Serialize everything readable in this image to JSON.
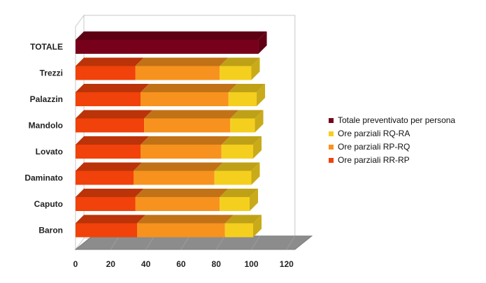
{
  "chart_data": {
    "type": "bar",
    "orientation": "horizontal",
    "stacked": true,
    "style": "3d",
    "categories": [
      "TOTALE",
      "Trezzi",
      "Palazzin",
      "Mandolo",
      "Lovato",
      "Daminato",
      "Caputo",
      "Baron"
    ],
    "series": [
      {
        "name": "Ore parziali RR-RP",
        "color": "#f0420a",
        "values": [
          0,
          34,
          37,
          39,
          37,
          33,
          34,
          35
        ]
      },
      {
        "name": "Ore parziali RP-RQ",
        "color": "#f7921e",
        "values": [
          0,
          48,
          50,
          49,
          46,
          46,
          48,
          50
        ]
      },
      {
        "name": "Ore parziali RQ-RA",
        "color": "#f5cf1e",
        "values": [
          0,
          18,
          16,
          14,
          18,
          21,
          17,
          16
        ]
      },
      {
        "name": "Totale preventivato per persona",
        "color": "#77001a",
        "values": [
          104,
          0,
          0,
          0,
          0,
          0,
          0,
          0
        ]
      }
    ],
    "legend_order": [
      "Totale preventivato per persona",
      "Ore parziali RQ-RA",
      "Ore parziali RP-RQ",
      "Ore parziali RR-RP"
    ],
    "x_ticks": [
      "0",
      "20",
      "40",
      "60",
      "80",
      "100",
      "120"
    ],
    "xlim": [
      0,
      120
    ],
    "grid": false,
    "legend_position": "right"
  }
}
